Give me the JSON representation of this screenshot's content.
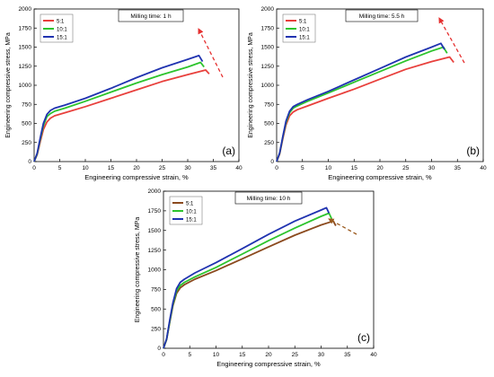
{
  "chart_data": [
    {
      "type": "line",
      "panel_label": "(a)",
      "annotation": "Milling time: 1 h",
      "xlabel": "Engineering compressive strain, %",
      "ylabel": "Engineering compressive stress, MPa",
      "xlim": [
        0,
        40
      ],
      "ylim": [
        0,
        2000
      ],
      "xticks": [
        0,
        5,
        10,
        15,
        20,
        25,
        30,
        35,
        40
      ],
      "yticks": [
        0,
        250,
        500,
        750,
        1000,
        1250,
        1500,
        1750,
        2000
      ],
      "legend_position": "top-left",
      "arrow_color": "#e53030",
      "series": [
        {
          "name": "5:1",
          "color": "#e8403c",
          "x": [
            0,
            0.6,
            1.2,
            1.8,
            2.5,
            3.2,
            4,
            6,
            10,
            15,
            20,
            25,
            30,
            33.5,
            34.2
          ],
          "y": [
            0,
            90,
            260,
            420,
            520,
            570,
            600,
            640,
            720,
            830,
            940,
            1050,
            1140,
            1200,
            1150
          ]
        },
        {
          "name": "10:1",
          "color": "#2dc42d",
          "x": [
            0,
            0.6,
            1.2,
            1.8,
            2.5,
            3.2,
            4,
            6,
            10,
            15,
            20,
            25,
            30,
            32.5,
            33.2
          ],
          "y": [
            0,
            100,
            290,
            470,
            590,
            630,
            660,
            700,
            790,
            910,
            1030,
            1140,
            1240,
            1300,
            1240
          ]
        },
        {
          "name": "15:1",
          "color": "#2033b0",
          "x": [
            0,
            0.6,
            1.2,
            1.8,
            2.5,
            3.2,
            4,
            6,
            10,
            15,
            20,
            25,
            30,
            32.2,
            32.9
          ],
          "y": [
            0,
            110,
            310,
            500,
            620,
            670,
            700,
            740,
            830,
            960,
            1100,
            1230,
            1340,
            1390,
            1310
          ]
        }
      ]
    },
    {
      "type": "line",
      "panel_label": "(b)",
      "annotation": "Milling time: 5.5 h",
      "xlabel": "Engineering compressive strain, %",
      "ylabel": "Engineering compressive stress, MPa",
      "xlim": [
        0,
        40
      ],
      "ylim": [
        0,
        2000
      ],
      "xticks": [
        0,
        5,
        10,
        15,
        20,
        25,
        30,
        35,
        40
      ],
      "yticks": [
        0,
        250,
        500,
        750,
        1000,
        1250,
        1500,
        1750,
        2000
      ],
      "legend_position": "top-left",
      "arrow_color": "#e53030",
      "series": [
        {
          "name": "5:1",
          "color": "#e8403c",
          "x": [
            0,
            0.6,
            1.2,
            1.8,
            2.5,
            3.2,
            4,
            6,
            10,
            15,
            20,
            25,
            30,
            33.5,
            34.3
          ],
          "y": [
            0,
            100,
            300,
            480,
            600,
            650,
            680,
            730,
            830,
            950,
            1080,
            1210,
            1310,
            1370,
            1300
          ]
        },
        {
          "name": "10:1",
          "color": "#2dc42d",
          "x": [
            0,
            0.6,
            1.2,
            1.8,
            2.5,
            3.2,
            4,
            6,
            10,
            15,
            20,
            25,
            30,
            32.3,
            33.0
          ],
          "y": [
            0,
            110,
            320,
            510,
            640,
            700,
            730,
            790,
            900,
            1040,
            1180,
            1320,
            1450,
            1500,
            1420
          ]
        },
        {
          "name": "15:1",
          "color": "#2033b0",
          "x": [
            0,
            0.6,
            1.2,
            1.8,
            2.5,
            3.2,
            4,
            6,
            10,
            15,
            20,
            25,
            30,
            31.8,
            32.5
          ],
          "y": [
            0,
            115,
            330,
            530,
            660,
            720,
            750,
            810,
            920,
            1070,
            1220,
            1370,
            1500,
            1550,
            1470
          ]
        }
      ]
    },
    {
      "type": "line",
      "panel_label": "(c)",
      "annotation": "Milling time: 10 h",
      "xlabel": "Engineering compressive strain, %",
      "ylabel": "Engineering compressive stress, MPa",
      "xlim": [
        0,
        40
      ],
      "ylim": [
        0,
        2000
      ],
      "xticks": [
        0,
        5,
        10,
        15,
        20,
        25,
        30,
        35,
        40
      ],
      "yticks": [
        0,
        250,
        500,
        750,
        1000,
        1250,
        1500,
        1750,
        2000
      ],
      "legend_position": "top-left",
      "arrow_color": "#9a5a1e",
      "series": [
        {
          "name": "5:1",
          "color": "#8b4a1e",
          "x": [
            0,
            0.6,
            1.2,
            1.8,
            2.5,
            3.2,
            4,
            6,
            10,
            15,
            20,
            25,
            30,
            32.3,
            32.8
          ],
          "y": [
            0,
            110,
            330,
            540,
            700,
            770,
            810,
            880,
            990,
            1140,
            1290,
            1440,
            1570,
            1620,
            1560
          ]
        },
        {
          "name": "10:1",
          "color": "#2dc42d",
          "x": [
            0,
            0.6,
            1.2,
            1.8,
            2.5,
            3.2,
            4,
            6,
            10,
            15,
            20,
            25,
            30,
            31.5,
            32.0
          ],
          "y": [
            0,
            115,
            345,
            560,
            730,
            800,
            840,
            910,
            1030,
            1200,
            1370,
            1530,
            1680,
            1720,
            1650
          ]
        },
        {
          "name": "15:1",
          "color": "#2033b0",
          "x": [
            0,
            0.6,
            1.2,
            1.8,
            2.5,
            3.2,
            4,
            6,
            10,
            15,
            20,
            25,
            30,
            31.0,
            31.5
          ],
          "y": [
            0,
            120,
            360,
            580,
            760,
            840,
            880,
            960,
            1090,
            1270,
            1450,
            1620,
            1760,
            1790,
            1720
          ]
        }
      ]
    }
  ]
}
